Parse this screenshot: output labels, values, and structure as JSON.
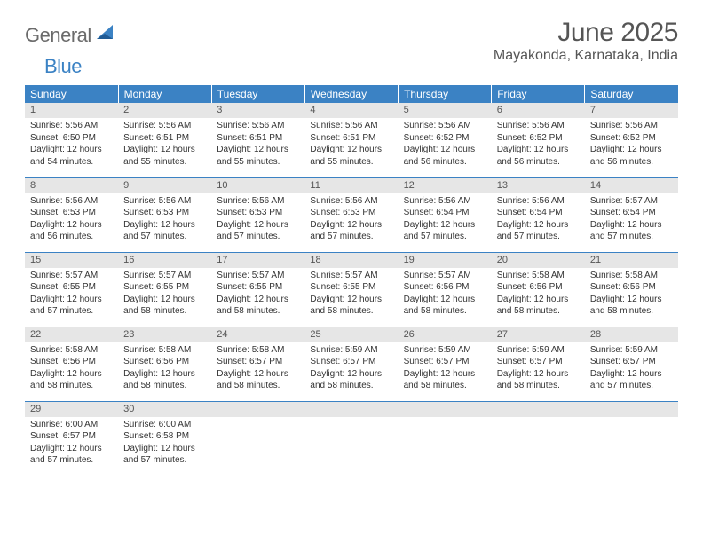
{
  "logo": {
    "general": "General",
    "blue": "Blue"
  },
  "title": "June 2025",
  "location": "Mayakonda, Karnataka, India",
  "colors": {
    "header_bg": "#3b82c4",
    "header_fg": "#ffffff",
    "daynum_bg": "#e6e6e6",
    "text": "#333333",
    "title_color": "#555555",
    "row_border": "#3b82c4"
  },
  "weekdays": [
    "Sunday",
    "Monday",
    "Tuesday",
    "Wednesday",
    "Thursday",
    "Friday",
    "Saturday"
  ],
  "days": [
    {
      "n": 1,
      "sunrise": "5:56 AM",
      "sunset": "6:50 PM",
      "dl": "12 hours and 54 minutes."
    },
    {
      "n": 2,
      "sunrise": "5:56 AM",
      "sunset": "6:51 PM",
      "dl": "12 hours and 55 minutes."
    },
    {
      "n": 3,
      "sunrise": "5:56 AM",
      "sunset": "6:51 PM",
      "dl": "12 hours and 55 minutes."
    },
    {
      "n": 4,
      "sunrise": "5:56 AM",
      "sunset": "6:51 PM",
      "dl": "12 hours and 55 minutes."
    },
    {
      "n": 5,
      "sunrise": "5:56 AM",
      "sunset": "6:52 PM",
      "dl": "12 hours and 56 minutes."
    },
    {
      "n": 6,
      "sunrise": "5:56 AM",
      "sunset": "6:52 PM",
      "dl": "12 hours and 56 minutes."
    },
    {
      "n": 7,
      "sunrise": "5:56 AM",
      "sunset": "6:52 PM",
      "dl": "12 hours and 56 minutes."
    },
    {
      "n": 8,
      "sunrise": "5:56 AM",
      "sunset": "6:53 PM",
      "dl": "12 hours and 56 minutes."
    },
    {
      "n": 9,
      "sunrise": "5:56 AM",
      "sunset": "6:53 PM",
      "dl": "12 hours and 57 minutes."
    },
    {
      "n": 10,
      "sunrise": "5:56 AM",
      "sunset": "6:53 PM",
      "dl": "12 hours and 57 minutes."
    },
    {
      "n": 11,
      "sunrise": "5:56 AM",
      "sunset": "6:53 PM",
      "dl": "12 hours and 57 minutes."
    },
    {
      "n": 12,
      "sunrise": "5:56 AM",
      "sunset": "6:54 PM",
      "dl": "12 hours and 57 minutes."
    },
    {
      "n": 13,
      "sunrise": "5:56 AM",
      "sunset": "6:54 PM",
      "dl": "12 hours and 57 minutes."
    },
    {
      "n": 14,
      "sunrise": "5:57 AM",
      "sunset": "6:54 PM",
      "dl": "12 hours and 57 minutes."
    },
    {
      "n": 15,
      "sunrise": "5:57 AM",
      "sunset": "6:55 PM",
      "dl": "12 hours and 57 minutes."
    },
    {
      "n": 16,
      "sunrise": "5:57 AM",
      "sunset": "6:55 PM",
      "dl": "12 hours and 58 minutes."
    },
    {
      "n": 17,
      "sunrise": "5:57 AM",
      "sunset": "6:55 PM",
      "dl": "12 hours and 58 minutes."
    },
    {
      "n": 18,
      "sunrise": "5:57 AM",
      "sunset": "6:55 PM",
      "dl": "12 hours and 58 minutes."
    },
    {
      "n": 19,
      "sunrise": "5:57 AM",
      "sunset": "6:56 PM",
      "dl": "12 hours and 58 minutes."
    },
    {
      "n": 20,
      "sunrise": "5:58 AM",
      "sunset": "6:56 PM",
      "dl": "12 hours and 58 minutes."
    },
    {
      "n": 21,
      "sunrise": "5:58 AM",
      "sunset": "6:56 PM",
      "dl": "12 hours and 58 minutes."
    },
    {
      "n": 22,
      "sunrise": "5:58 AM",
      "sunset": "6:56 PM",
      "dl": "12 hours and 58 minutes."
    },
    {
      "n": 23,
      "sunrise": "5:58 AM",
      "sunset": "6:56 PM",
      "dl": "12 hours and 58 minutes."
    },
    {
      "n": 24,
      "sunrise": "5:58 AM",
      "sunset": "6:57 PM",
      "dl": "12 hours and 58 minutes."
    },
    {
      "n": 25,
      "sunrise": "5:59 AM",
      "sunset": "6:57 PM",
      "dl": "12 hours and 58 minutes."
    },
    {
      "n": 26,
      "sunrise": "5:59 AM",
      "sunset": "6:57 PM",
      "dl": "12 hours and 58 minutes."
    },
    {
      "n": 27,
      "sunrise": "5:59 AM",
      "sunset": "6:57 PM",
      "dl": "12 hours and 58 minutes."
    },
    {
      "n": 28,
      "sunrise": "5:59 AM",
      "sunset": "6:57 PM",
      "dl": "12 hours and 57 minutes."
    },
    {
      "n": 29,
      "sunrise": "6:00 AM",
      "sunset": "6:57 PM",
      "dl": "12 hours and 57 minutes."
    },
    {
      "n": 30,
      "sunrise": "6:00 AM",
      "sunset": "6:58 PM",
      "dl": "12 hours and 57 minutes."
    }
  ],
  "labels": {
    "sunrise": "Sunrise: ",
    "sunset": "Sunset: ",
    "daylight": "Daylight: "
  },
  "layout": {
    "weeks": 5,
    "start_weekday": 0
  }
}
